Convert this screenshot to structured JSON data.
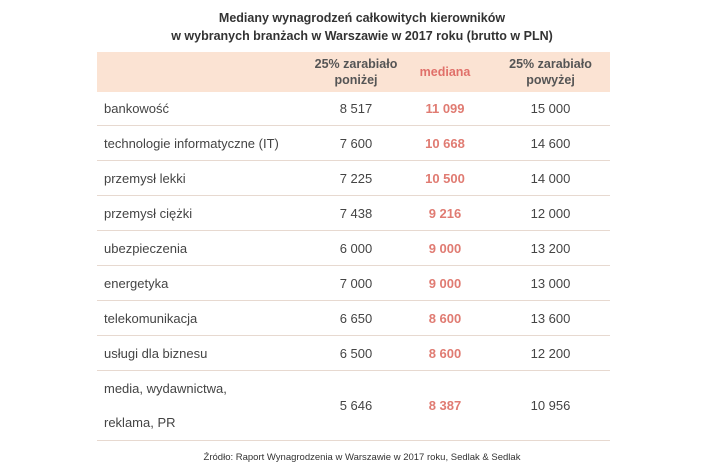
{
  "chart_data": {
    "type": "table",
    "title_lines": [
      "Mediany wynagrodzeń całkowitych kierowników",
      "w wybranych branżach w Warszawie w 2017 roku (brutto w PLN)"
    ],
    "columns": [
      {
        "lines": [
          "25% zarabiało",
          "poniżej"
        ]
      },
      {
        "lines": [
          "mediana"
        ]
      },
      {
        "lines": [
          "25% zarabiało",
          "powyżej"
        ]
      }
    ],
    "rows": [
      {
        "label": "bankowość",
        "p25": "8 517",
        "median": "11 099",
        "p75": "15 000"
      },
      {
        "label": "technologie informatyczne (IT)",
        "p25": "7 600",
        "median": "10 668",
        "p75": "14 600"
      },
      {
        "label": "przemysł lekki",
        "p25": "7 225",
        "median": "10 500",
        "p75": "14 000"
      },
      {
        "label": "przemysł ciężki",
        "p25": "7 438",
        "median": "9 216",
        "p75": "12 000"
      },
      {
        "label": "ubezpieczenia",
        "p25": "6 000",
        "median": "9 000",
        "p75": "13 200"
      },
      {
        "label": "energetyka",
        "p25": "7 000",
        "median": "9 000",
        "p75": "13 000"
      },
      {
        "label": "telekomunikacja",
        "p25": "6 650",
        "median": "8 600",
        "p75": "13 600"
      },
      {
        "label": "usługi dla biznesu",
        "p25": "6 500",
        "median": "8 600",
        "p75": "12 200"
      },
      {
        "label": "media, wydawnictwa, reklama, PR",
        "label_lines": [
          "media, wydawnictwa,",
          "reklama, PR"
        ],
        "p25": "5 646",
        "median": "8 387",
        "p75": "10 956"
      }
    ],
    "colors": {
      "median": "#e07b72",
      "header_bg": "#fbe3d3"
    }
  },
  "source": "Źródło: Raport Wynagrodzenia w Warszawie w 2017 roku, Sedlak & Sedlak"
}
